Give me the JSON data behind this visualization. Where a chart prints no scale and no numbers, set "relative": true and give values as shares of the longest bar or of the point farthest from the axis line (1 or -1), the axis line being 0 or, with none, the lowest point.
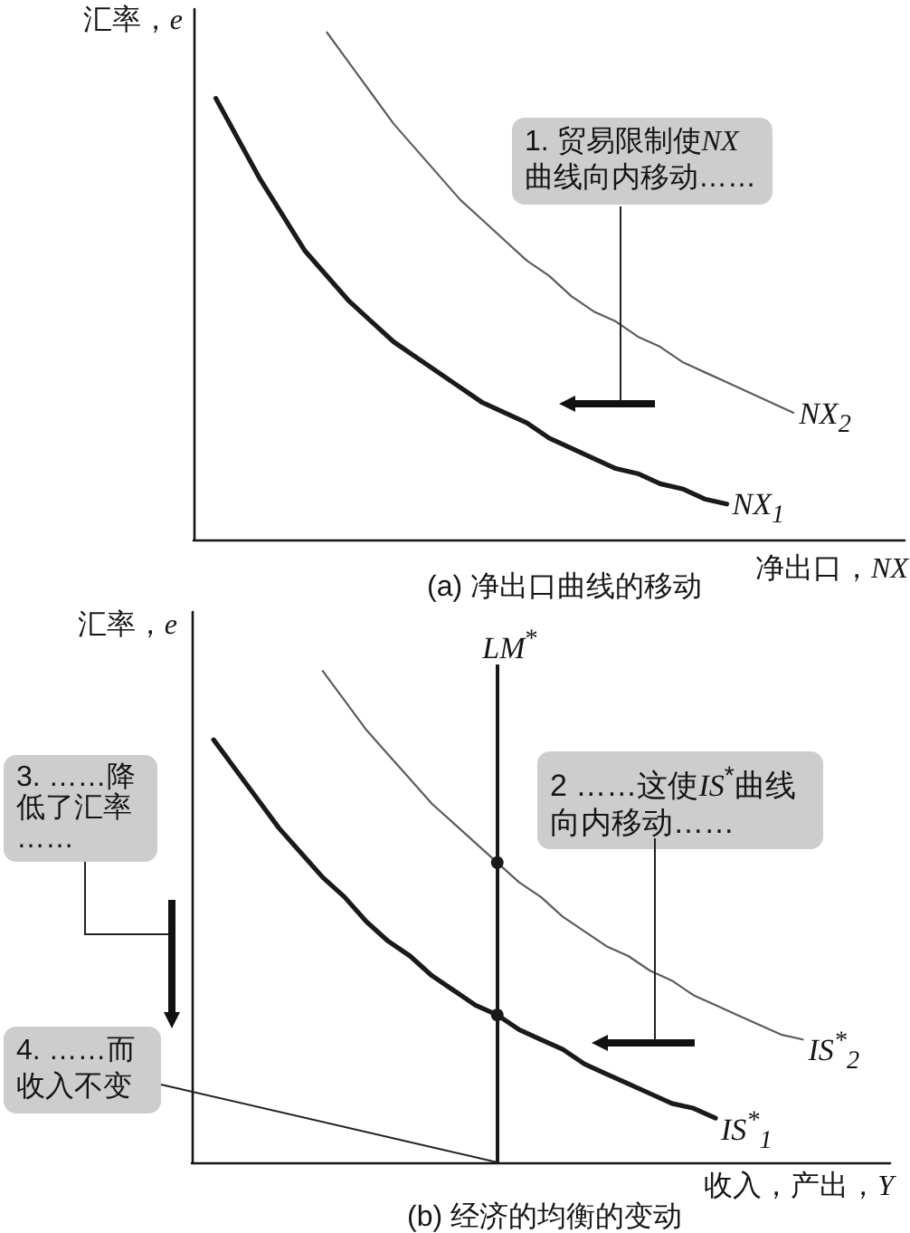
{
  "chart_data": [
    {
      "type": "line",
      "title": "(a) 净出口曲线的移动",
      "xlabel": "净出口，NX",
      "ylabel": "汇率，e",
      "relative": true,
      "grid": false,
      "legend": false,
      "marker": "none",
      "tick_labels": false,
      "categories": [
        null,
        null,
        null,
        null,
        null,
        null,
        null,
        null,
        null,
        null,
        null,
        null,
        null,
        null,
        null,
        null,
        null,
        null,
        null,
        null,
        null,
        null,
        null,
        null,
        null,
        null,
        null,
        null,
        null,
        null,
        null,
        null,
        null
      ],
      "series": [
        {
          "name": "NX$_{1}$",
          "color": "#1a1a1a",
          "values": [
            null,
            0.87,
            0.79,
            0.71,
            0.64,
            0.57,
            0.52,
            0.47,
            0.43,
            0.39,
            0.36,
            0.33,
            0.3,
            0.27,
            0.25,
            0.23,
            0.2,
            0.18,
            0.16,
            0.14,
            0.13,
            0.11,
            0.1,
            0.08,
            0.07,
            null,
            null,
            null,
            null,
            null,
            null,
            null,
            null
          ]
        },
        {
          "name": "NX$_{2}$",
          "color": "#5c5c5c",
          "values": [
            null,
            null,
            null,
            null,
            null,
            null,
            1.0,
            0.94,
            0.88,
            0.82,
            0.77,
            0.72,
            0.67,
            0.63,
            0.59,
            0.55,
            0.52,
            0.48,
            0.45,
            0.43,
            0.4,
            0.38,
            0.35,
            0.33,
            0.31,
            0.29,
            0.27,
            0.25,
            null,
            null,
            null,
            null,
            null
          ]
        }
      ],
      "annotations": [
        "1. 贸易限制使NX曲线向内移动……"
      ]
    },
    {
      "type": "line",
      "title": "(b) 经济的均衡的变动",
      "xlabel": "收入，产出，Y",
      "ylabel": "汇率，e",
      "relative": true,
      "grid": false,
      "legend": false,
      "marker": "none",
      "tick_labels": false,
      "categories": [
        null,
        null,
        null,
        null,
        null,
        null,
        null,
        null,
        null,
        null,
        null,
        null,
        null,
        null,
        null,
        null,
        null,
        null,
        null,
        null,
        null,
        null,
        null,
        null,
        null,
        null,
        null,
        null,
        null,
        null,
        null,
        null,
        null
      ],
      "series": [
        {
          "name": "IS$^{*}$$_{1}$",
          "color": "#1a1a1a",
          "values": [
            null,
            0.86,
            0.8,
            0.74,
            0.68,
            0.63,
            0.58,
            0.54,
            0.49,
            0.45,
            0.42,
            0.38,
            0.35,
            0.32,
            0.3,
            0.27,
            0.25,
            0.23,
            0.2,
            0.18,
            0.16,
            0.14,
            0.12,
            0.11,
            0.09,
            null,
            null,
            null,
            null,
            null,
            null,
            null,
            null
          ]
        },
        {
          "name": "IS$^{*}$$_{2}$",
          "color": "#5c5c5c",
          "values": [
            null,
            null,
            null,
            null,
            null,
            null,
            1.0,
            0.94,
            0.88,
            0.83,
            0.78,
            0.73,
            0.69,
            0.65,
            0.61,
            0.57,
            0.54,
            0.5,
            0.47,
            0.44,
            0.42,
            0.39,
            0.37,
            0.34,
            0.32,
            0.3,
            0.28,
            0.26,
            0.25,
            null,
            null,
            null,
            null
          ]
        },
        {
          "marker": "circle",
          "color": "#1a1a1a",
          "values": [
            null,
            null,
            null,
            null,
            null,
            null,
            null,
            null,
            null,
            null,
            null,
            null,
            null,
            null,
            0.61,
            null,
            null,
            null,
            null,
            null,
            null,
            null,
            null,
            null,
            null,
            null,
            null,
            null,
            null,
            null,
            null,
            null,
            null
          ]
        },
        {
          "marker": "circle",
          "color": "#1a1a1a",
          "values": [
            null,
            null,
            null,
            null,
            null,
            null,
            null,
            null,
            null,
            null,
            null,
            null,
            null,
            null,
            0.3,
            null,
            null,
            null,
            null,
            null,
            null,
            null,
            null,
            null,
            null,
            null,
            null,
            null,
            null,
            null,
            null,
            null,
            null
          ]
        }
      ],
      "annotations": [
        "LM$^{*}$",
        "2 ……这使IS$^{*}$曲线向内移动……",
        "3. ……降低了汇率……",
        "4. ……而收入不变"
      ]
    }
  ]
}
